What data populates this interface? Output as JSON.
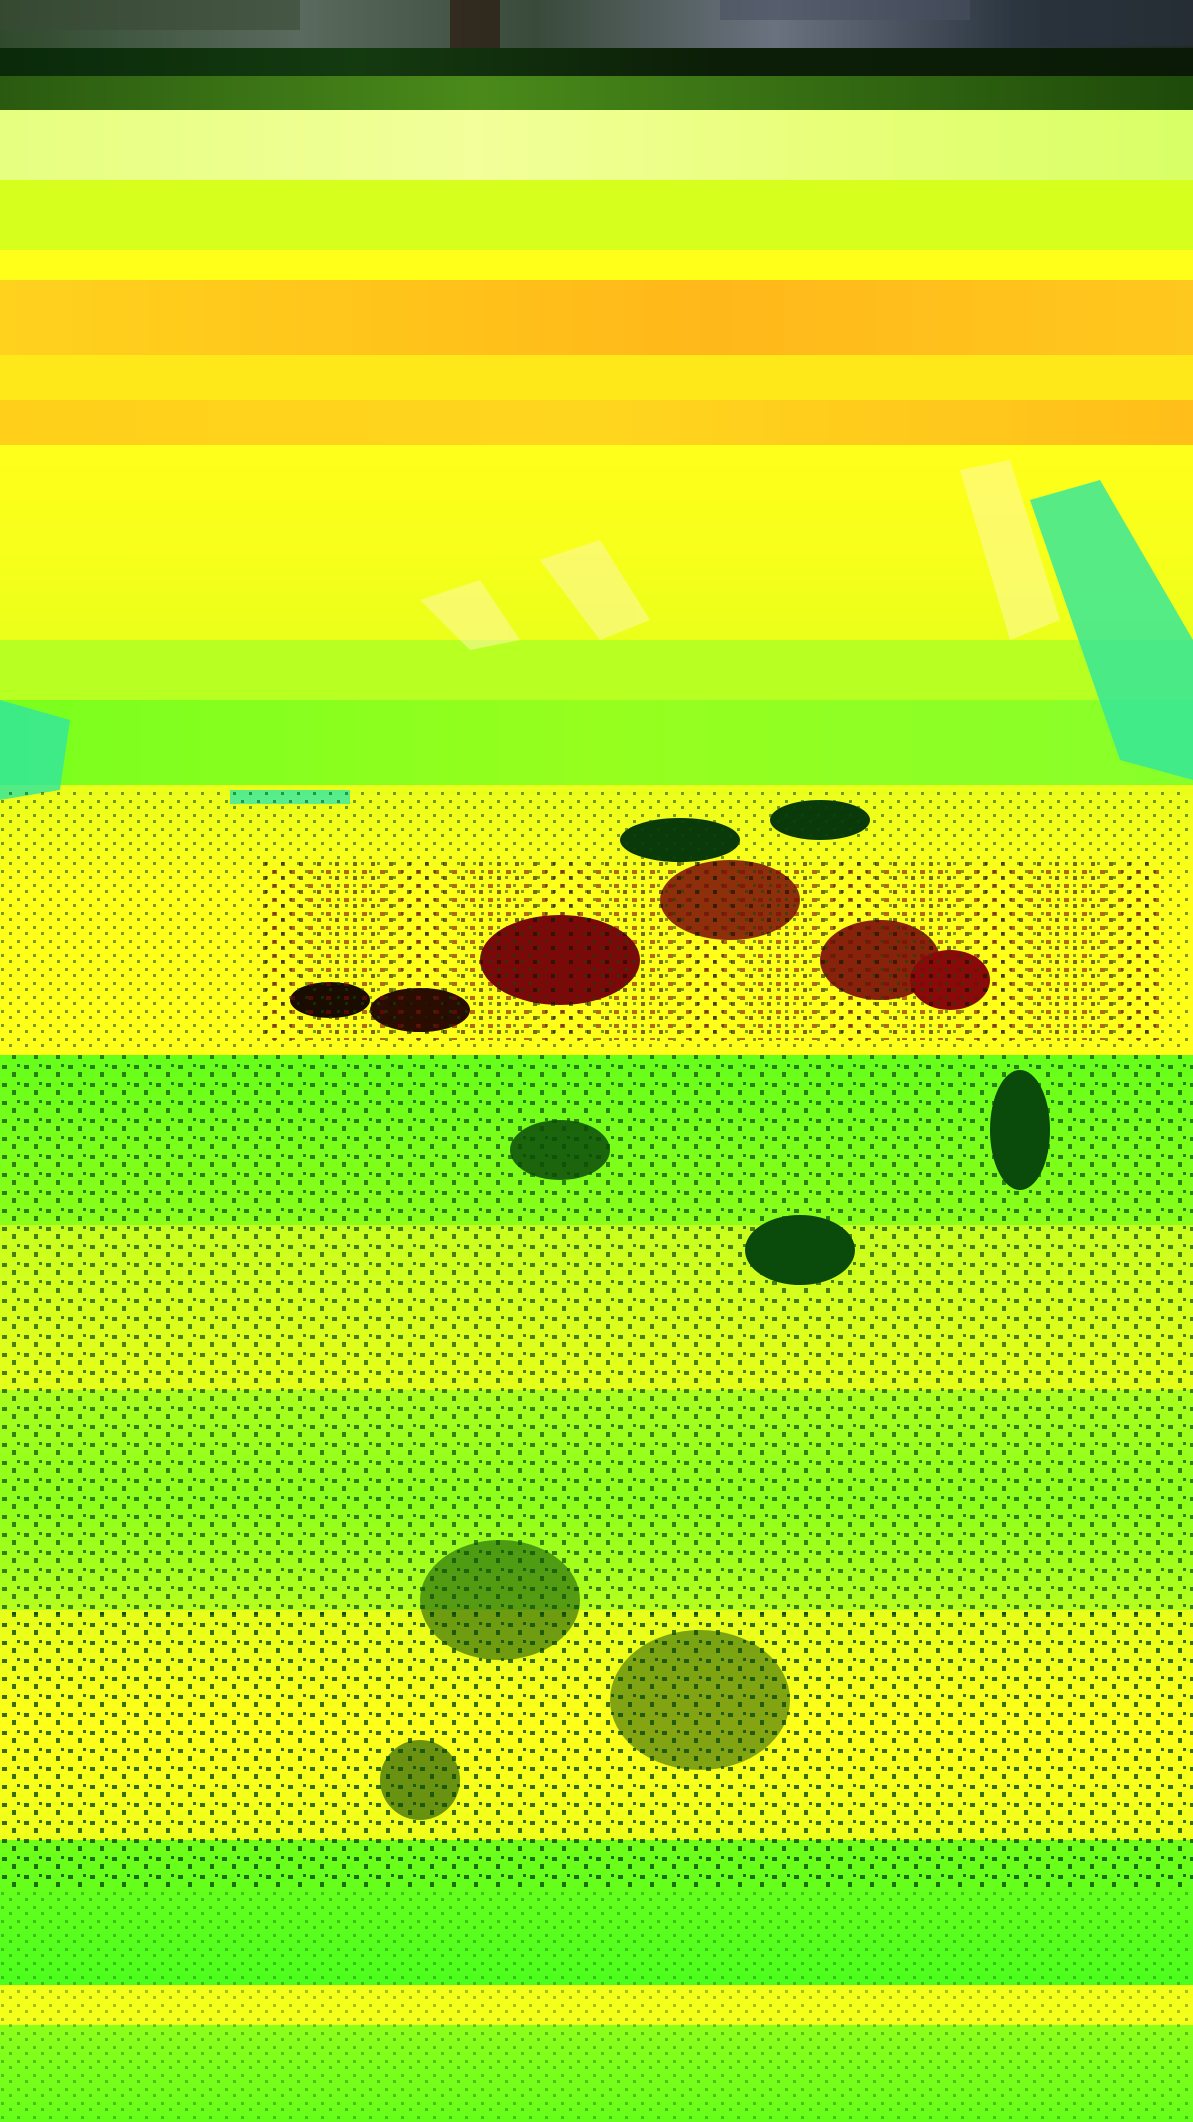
{
  "image": {
    "description_tag": "photo",
    "palette": {
      "sky": "#2a3a2e",
      "top_band_light": "#e8ff6e",
      "yellow": "#ffff1a",
      "orange": "#ffc81e",
      "lime": "#c8ff1e",
      "green": "#66ff1a",
      "teal": "#2ee6a0",
      "dark_green": "#0a4a0a",
      "dark_red": "#7a0a0a",
      "near_black": "#1a0c00"
    }
  }
}
